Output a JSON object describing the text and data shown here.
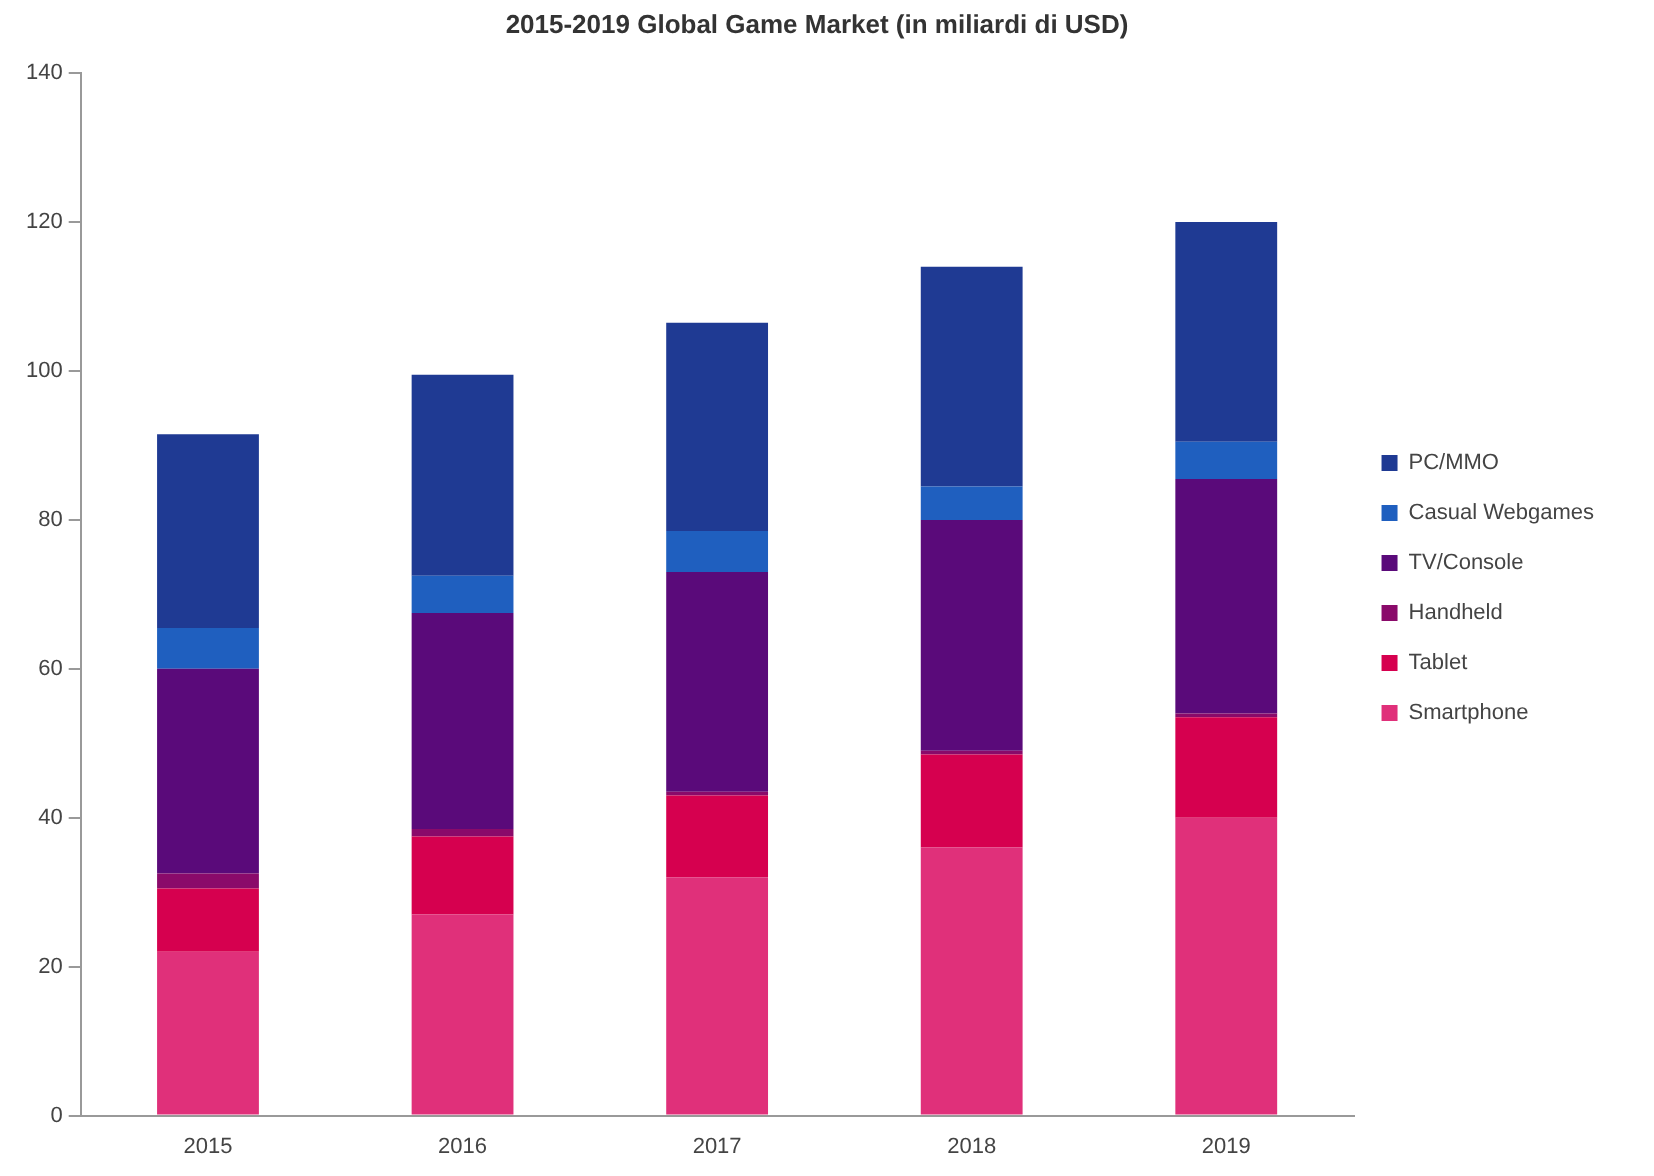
{
  "chart_data": {
    "type": "bar",
    "title": "2015-2019 Global Game Market (in miliardi di USD)",
    "stacked": true,
    "grid": false,
    "legend": "right",
    "categories": [
      "2015",
      "2016",
      "2017",
      "2018",
      "2019"
    ],
    "ylim": [
      0,
      140
    ],
    "yticks": [
      0,
      20,
      40,
      60,
      80,
      100,
      120,
      140
    ],
    "series": [
      {
        "name": "Smartphone",
        "color": "#e0307a",
        "values": [
          22,
          27,
          32,
          36,
          40
        ]
      },
      {
        "name": "Tablet",
        "color": "#d6004f",
        "values": [
          8.5,
          10.5,
          11,
          12.5,
          13.5
        ]
      },
      {
        "name": "Handheld",
        "color": "#8a0a6a",
        "values": [
          2,
          1,
          0.5,
          0.5,
          0.5
        ]
      },
      {
        "name": "TV/Console",
        "color": "#5a0a7a",
        "values": [
          27.5,
          29,
          29.5,
          31,
          31.5
        ]
      },
      {
        "name": "Casual Webgames",
        "color": "#1f5fbf",
        "values": [
          5.5,
          5,
          5.5,
          4.5,
          5
        ]
      },
      {
        "name": "PC/MMO",
        "color": "#1f3a93",
        "values": [
          26,
          27,
          28,
          29.5,
          29.5
        ]
      }
    ]
  }
}
